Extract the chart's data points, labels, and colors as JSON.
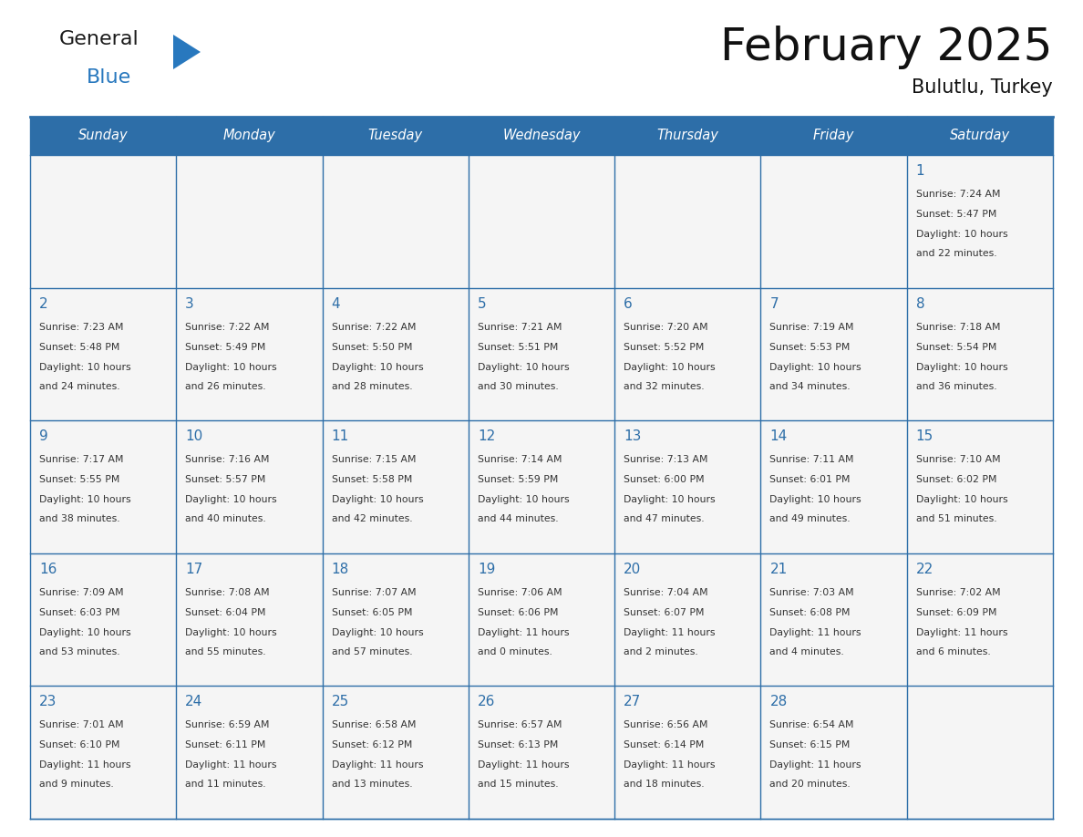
{
  "title": "February 2025",
  "subtitle": "Bulutlu, Turkey",
  "days_of_week": [
    "Sunday",
    "Monday",
    "Tuesday",
    "Wednesday",
    "Thursday",
    "Friday",
    "Saturday"
  ],
  "header_bg": "#2D6EA8",
  "header_text_color": "#FFFFFF",
  "cell_bg": "#F5F5F5",
  "text_color_dark": "#333333",
  "text_color_day": "#2D6EA8",
  "border_color": "#2D6EA8",
  "logo_general_color": "#1a1a1a",
  "logo_blue_color": "#2878BE",
  "calendar_data": [
    [
      null,
      null,
      null,
      null,
      null,
      null,
      {
        "day": 1,
        "sunrise": "7:24 AM",
        "sunset": "5:47 PM",
        "daylight_line1": "Daylight: 10 hours",
        "daylight_line2": "and 22 minutes."
      }
    ],
    [
      {
        "day": 2,
        "sunrise": "7:23 AM",
        "sunset": "5:48 PM",
        "daylight_line1": "Daylight: 10 hours",
        "daylight_line2": "and 24 minutes."
      },
      {
        "day": 3,
        "sunrise": "7:22 AM",
        "sunset": "5:49 PM",
        "daylight_line1": "Daylight: 10 hours",
        "daylight_line2": "and 26 minutes."
      },
      {
        "day": 4,
        "sunrise": "7:22 AM",
        "sunset": "5:50 PM",
        "daylight_line1": "Daylight: 10 hours",
        "daylight_line2": "and 28 minutes."
      },
      {
        "day": 5,
        "sunrise": "7:21 AM",
        "sunset": "5:51 PM",
        "daylight_line1": "Daylight: 10 hours",
        "daylight_line2": "and 30 minutes."
      },
      {
        "day": 6,
        "sunrise": "7:20 AM",
        "sunset": "5:52 PM",
        "daylight_line1": "Daylight: 10 hours",
        "daylight_line2": "and 32 minutes."
      },
      {
        "day": 7,
        "sunrise": "7:19 AM",
        "sunset": "5:53 PM",
        "daylight_line1": "Daylight: 10 hours",
        "daylight_line2": "and 34 minutes."
      },
      {
        "day": 8,
        "sunrise": "7:18 AM",
        "sunset": "5:54 PM",
        "daylight_line1": "Daylight: 10 hours",
        "daylight_line2": "and 36 minutes."
      }
    ],
    [
      {
        "day": 9,
        "sunrise": "7:17 AM",
        "sunset": "5:55 PM",
        "daylight_line1": "Daylight: 10 hours",
        "daylight_line2": "and 38 minutes."
      },
      {
        "day": 10,
        "sunrise": "7:16 AM",
        "sunset": "5:57 PM",
        "daylight_line1": "Daylight: 10 hours",
        "daylight_line2": "and 40 minutes."
      },
      {
        "day": 11,
        "sunrise": "7:15 AM",
        "sunset": "5:58 PM",
        "daylight_line1": "Daylight: 10 hours",
        "daylight_line2": "and 42 minutes."
      },
      {
        "day": 12,
        "sunrise": "7:14 AM",
        "sunset": "5:59 PM",
        "daylight_line1": "Daylight: 10 hours",
        "daylight_line2": "and 44 minutes."
      },
      {
        "day": 13,
        "sunrise": "7:13 AM",
        "sunset": "6:00 PM",
        "daylight_line1": "Daylight: 10 hours",
        "daylight_line2": "and 47 minutes."
      },
      {
        "day": 14,
        "sunrise": "7:11 AM",
        "sunset": "6:01 PM",
        "daylight_line1": "Daylight: 10 hours",
        "daylight_line2": "and 49 minutes."
      },
      {
        "day": 15,
        "sunrise": "7:10 AM",
        "sunset": "6:02 PM",
        "daylight_line1": "Daylight: 10 hours",
        "daylight_line2": "and 51 minutes."
      }
    ],
    [
      {
        "day": 16,
        "sunrise": "7:09 AM",
        "sunset": "6:03 PM",
        "daylight_line1": "Daylight: 10 hours",
        "daylight_line2": "and 53 minutes."
      },
      {
        "day": 17,
        "sunrise": "7:08 AM",
        "sunset": "6:04 PM",
        "daylight_line1": "Daylight: 10 hours",
        "daylight_line2": "and 55 minutes."
      },
      {
        "day": 18,
        "sunrise": "7:07 AM",
        "sunset": "6:05 PM",
        "daylight_line1": "Daylight: 10 hours",
        "daylight_line2": "and 57 minutes."
      },
      {
        "day": 19,
        "sunrise": "7:06 AM",
        "sunset": "6:06 PM",
        "daylight_line1": "Daylight: 11 hours",
        "daylight_line2": "and 0 minutes."
      },
      {
        "day": 20,
        "sunrise": "7:04 AM",
        "sunset": "6:07 PM",
        "daylight_line1": "Daylight: 11 hours",
        "daylight_line2": "and 2 minutes."
      },
      {
        "day": 21,
        "sunrise": "7:03 AM",
        "sunset": "6:08 PM",
        "daylight_line1": "Daylight: 11 hours",
        "daylight_line2": "and 4 minutes."
      },
      {
        "day": 22,
        "sunrise": "7:02 AM",
        "sunset": "6:09 PM",
        "daylight_line1": "Daylight: 11 hours",
        "daylight_line2": "and 6 minutes."
      }
    ],
    [
      {
        "day": 23,
        "sunrise": "7:01 AM",
        "sunset": "6:10 PM",
        "daylight_line1": "Daylight: 11 hours",
        "daylight_line2": "and 9 minutes."
      },
      {
        "day": 24,
        "sunrise": "6:59 AM",
        "sunset": "6:11 PM",
        "daylight_line1": "Daylight: 11 hours",
        "daylight_line2": "and 11 minutes."
      },
      {
        "day": 25,
        "sunrise": "6:58 AM",
        "sunset": "6:12 PM",
        "daylight_line1": "Daylight: 11 hours",
        "daylight_line2": "and 13 minutes."
      },
      {
        "day": 26,
        "sunrise": "6:57 AM",
        "sunset": "6:13 PM",
        "daylight_line1": "Daylight: 11 hours",
        "daylight_line2": "and 15 minutes."
      },
      {
        "day": 27,
        "sunrise": "6:56 AM",
        "sunset": "6:14 PM",
        "daylight_line1": "Daylight: 11 hours",
        "daylight_line2": "and 18 minutes."
      },
      {
        "day": 28,
        "sunrise": "6:54 AM",
        "sunset": "6:15 PM",
        "daylight_line1": "Daylight: 11 hours",
        "daylight_line2": "and 20 minutes."
      },
      null
    ]
  ]
}
